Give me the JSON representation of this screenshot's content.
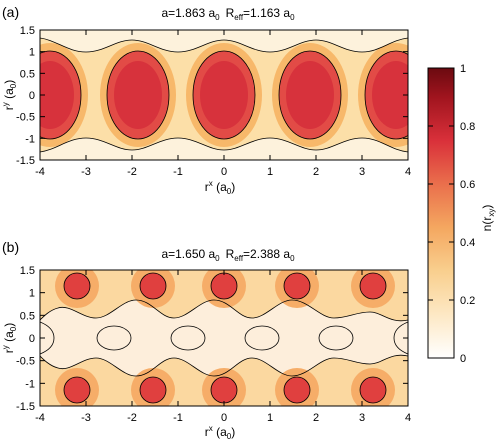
{
  "colors": {
    "cmap": [
      "#ffffff",
      "#fde8c4",
      "#f9cf8e",
      "#f4a760",
      "#ea6f4c",
      "#d9303a",
      "#a0141e",
      "#6b0a10"
    ],
    "contour": "#000000",
    "frame": "#000000"
  },
  "chart_data": [
    {
      "type": "heatmap",
      "panel_label": "(a)",
      "title_a": "a=1.863 a",
      "title_a_sub": "0",
      "title_r": "R",
      "title_r_sub": "eff",
      "title_r_val": "=1.163 a",
      "title_r_val_sub": "0",
      "xlabel": "r",
      "xlabel_sup": "x",
      "xlabel_unit": " (a",
      "xlabel_unit_sub": "0",
      "xlabel_close": ")",
      "ylabel": "r",
      "ylabel_sup": "y",
      "ylabel_unit": " (a",
      "ylabel_unit_sub": "0",
      "ylabel_close": ")",
      "xlim": [
        -4,
        4
      ],
      "ylim": [
        -1.5,
        1.5
      ],
      "xticks": [
        "-4",
        "-3",
        "-2",
        "-1",
        "0",
        "1",
        "2",
        "3",
        "4"
      ],
      "yticks": [
        "-1.5",
        "-1",
        "-0.5",
        "0",
        "0.5",
        "1",
        "1.5"
      ],
      "lattice_constant": 1.863,
      "r_eff": 1.163,
      "lobe_centers_x": [
        -3.726,
        -1.863,
        0,
        1.863,
        3.726
      ]
    },
    {
      "type": "heatmap",
      "panel_label": "(b)",
      "title_a": "a=1.650 a",
      "title_a_sub": "0",
      "title_r": "R",
      "title_r_sub": "eff",
      "title_r_val": "=2.388 a",
      "title_r_val_sub": "0",
      "xlabel": "r",
      "xlabel_sup": "x",
      "xlabel_unit": " (a",
      "xlabel_unit_sub": "0",
      "xlabel_close": ")",
      "ylabel": "r",
      "ylabel_sup": "y",
      "ylabel_unit": " (a",
      "ylabel_unit_sub": "0",
      "ylabel_close": ")",
      "xlim": [
        -4,
        4
      ],
      "ylim": [
        -1.5,
        1.5
      ],
      "xticks": [
        "-4",
        "-3",
        "-2",
        "-1",
        "0",
        "1",
        "2",
        "3",
        "4"
      ],
      "yticks": [
        "-1.5",
        "-1",
        "-0.5",
        "0",
        "0.5",
        "1",
        "1.5"
      ],
      "lattice_constant": 1.65,
      "r_eff": 2.388,
      "peak_centers_x": [
        -3.3,
        -1.65,
        0,
        1.65,
        3.3
      ],
      "peak_rows_y": [
        1.2,
        -1.2
      ]
    }
  ],
  "colorbar": {
    "label": "n(r",
    "label_sub": "xy",
    "label_close": ")",
    "range": [
      0,
      1
    ],
    "ticks": [
      "0",
      "0.2",
      "0.4",
      "0.6",
      "0.8",
      "1"
    ]
  }
}
